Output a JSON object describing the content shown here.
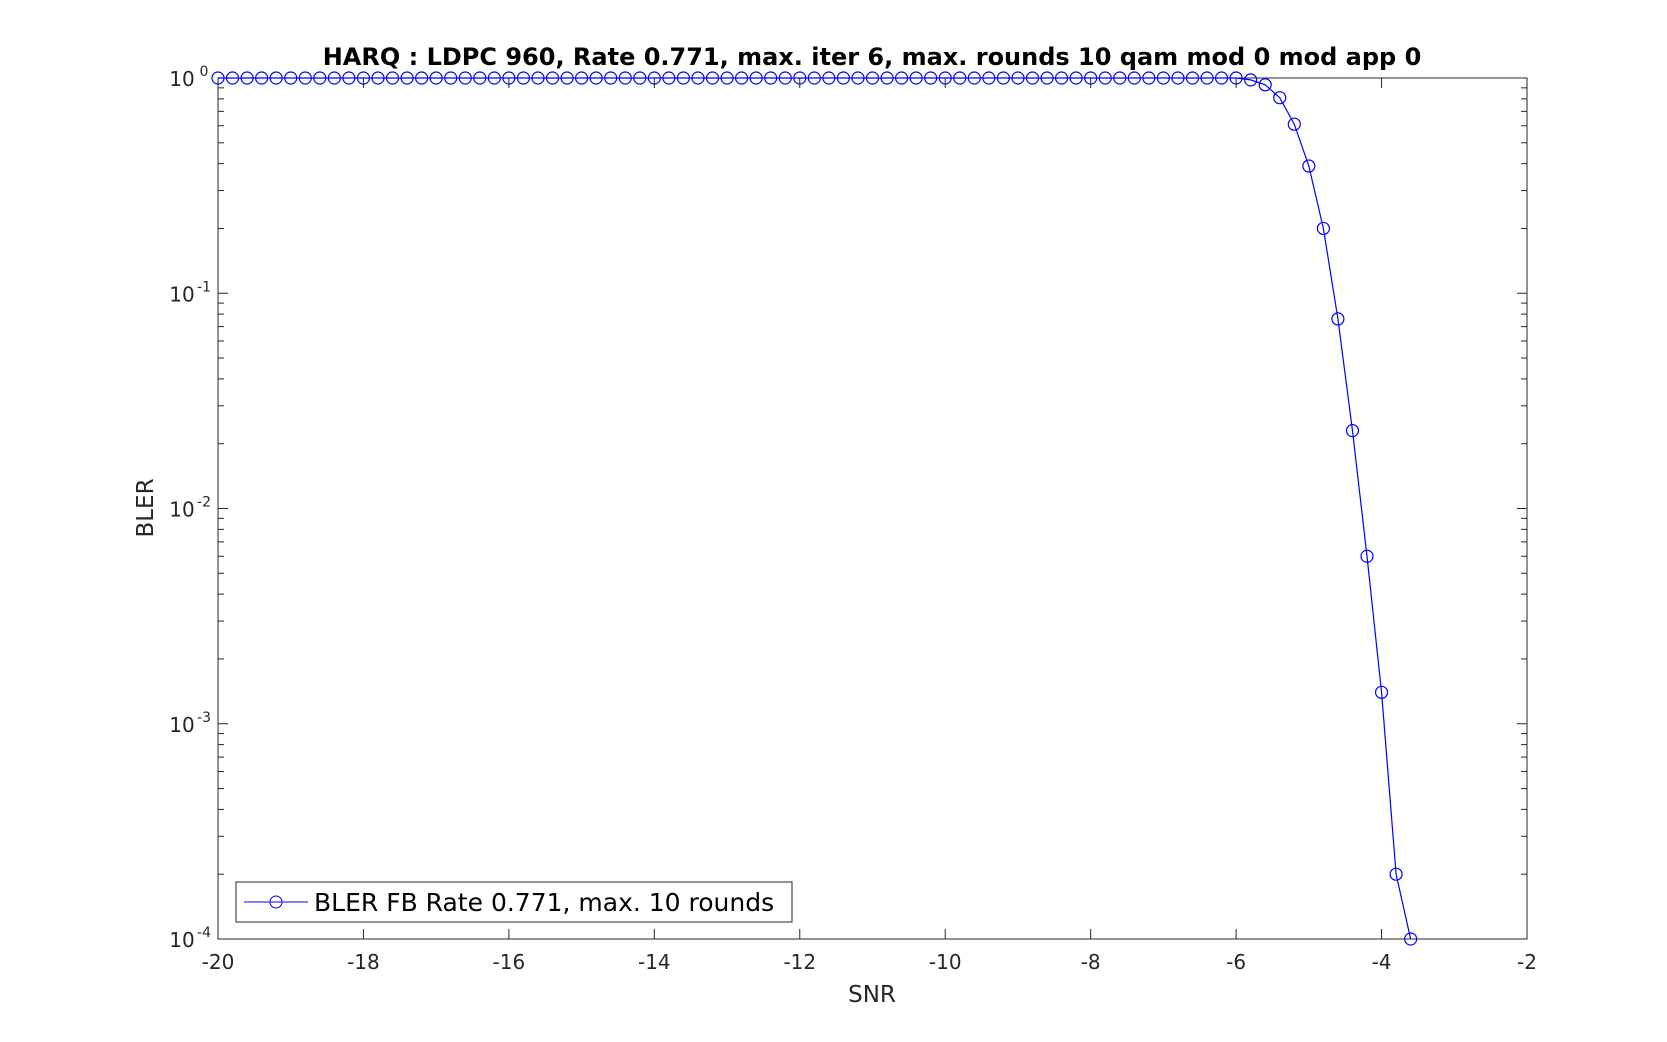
{
  "chart_data": {
    "type": "line",
    "title": "HARQ : LDPC 960, Rate 0.771, max. iter 6, max. rounds 10 qam mod 0 mod app 0",
    "xlabel": "SNR",
    "ylabel": "BLER",
    "xlim": [
      -20,
      -2
    ],
    "ylim": [
      0.0001,
      1
    ],
    "yscale": "log",
    "x_ticks": [
      -20,
      -18,
      -16,
      -14,
      -12,
      -10,
      -8,
      -6,
      -4,
      -2
    ],
    "x_tick_labels": [
      "-20",
      "-18",
      "-16",
      "-14",
      "-12",
      "-10",
      "-8",
      "-6",
      "-4",
      "-2"
    ],
    "y_ticks": [
      {
        "value": 1,
        "base": "10",
        "exp": "0"
      },
      {
        "value": 0.1,
        "base": "10",
        "exp": "-1"
      },
      {
        "value": 0.01,
        "base": "10",
        "exp": "-2"
      },
      {
        "value": 0.001,
        "base": "10",
        "exp": "-3"
      },
      {
        "value": 0.0001,
        "base": "10",
        "exp": "-4"
      }
    ],
    "grid": false,
    "legend_position": "bottom-left",
    "series": [
      {
        "name": "BLER FB Rate 0.771, max. 10 rounds",
        "color": "#0000ff",
        "marker": "circle",
        "x": [
          -20,
          -19.8,
          -19.6,
          -19.4,
          -19.2,
          -19,
          -18.8,
          -18.6,
          -18.4,
          -18.2,
          -18,
          -17.8,
          -17.6,
          -17.4,
          -17.2,
          -17,
          -16.8,
          -16.6,
          -16.4,
          -16.2,
          -16,
          -15.8,
          -15.6,
          -15.4,
          -15.2,
          -15,
          -14.8,
          -14.6,
          -14.4,
          -14.2,
          -14,
          -13.8,
          -13.6,
          -13.4,
          -13.2,
          -13,
          -12.8,
          -12.6,
          -12.4,
          -12.2,
          -12,
          -11.8,
          -11.6,
          -11.4,
          -11.2,
          -11,
          -10.8,
          -10.6,
          -10.4,
          -10.2,
          -10,
          -9.8,
          -9.6,
          -9.4,
          -9.2,
          -9,
          -8.8,
          -8.6,
          -8.4,
          -8.2,
          -8,
          -7.8,
          -7.6,
          -7.4,
          -7.2,
          -7,
          -6.8,
          -6.6,
          -6.4,
          -6.2,
          -6,
          -5.8,
          -5.6,
          -5.4,
          -5.2,
          -5,
          -4.8,
          -4.6,
          -4.4,
          -4.2,
          -4,
          -3.8,
          -3.6
        ],
        "y": [
          1,
          1,
          1,
          1,
          1,
          1,
          1,
          1,
          1,
          1,
          1,
          1,
          1,
          1,
          1,
          1,
          1,
          1,
          1,
          1,
          1,
          1,
          1,
          1,
          1,
          1,
          1,
          1,
          1,
          1,
          1,
          1,
          1,
          1,
          1,
          1,
          1,
          1,
          1,
          1,
          1,
          1,
          1,
          1,
          1,
          1,
          1,
          1,
          1,
          1,
          1,
          1,
          1,
          1,
          1,
          1,
          1,
          1,
          1,
          1,
          1,
          1,
          1,
          1,
          1,
          1,
          1,
          1,
          1,
          1,
          1,
          0.98,
          0.93,
          0.81,
          0.61,
          0.39,
          0.2,
          0.076,
          0.023,
          0.006,
          0.0014,
          0.0002,
          0.0001
        ]
      }
    ]
  }
}
